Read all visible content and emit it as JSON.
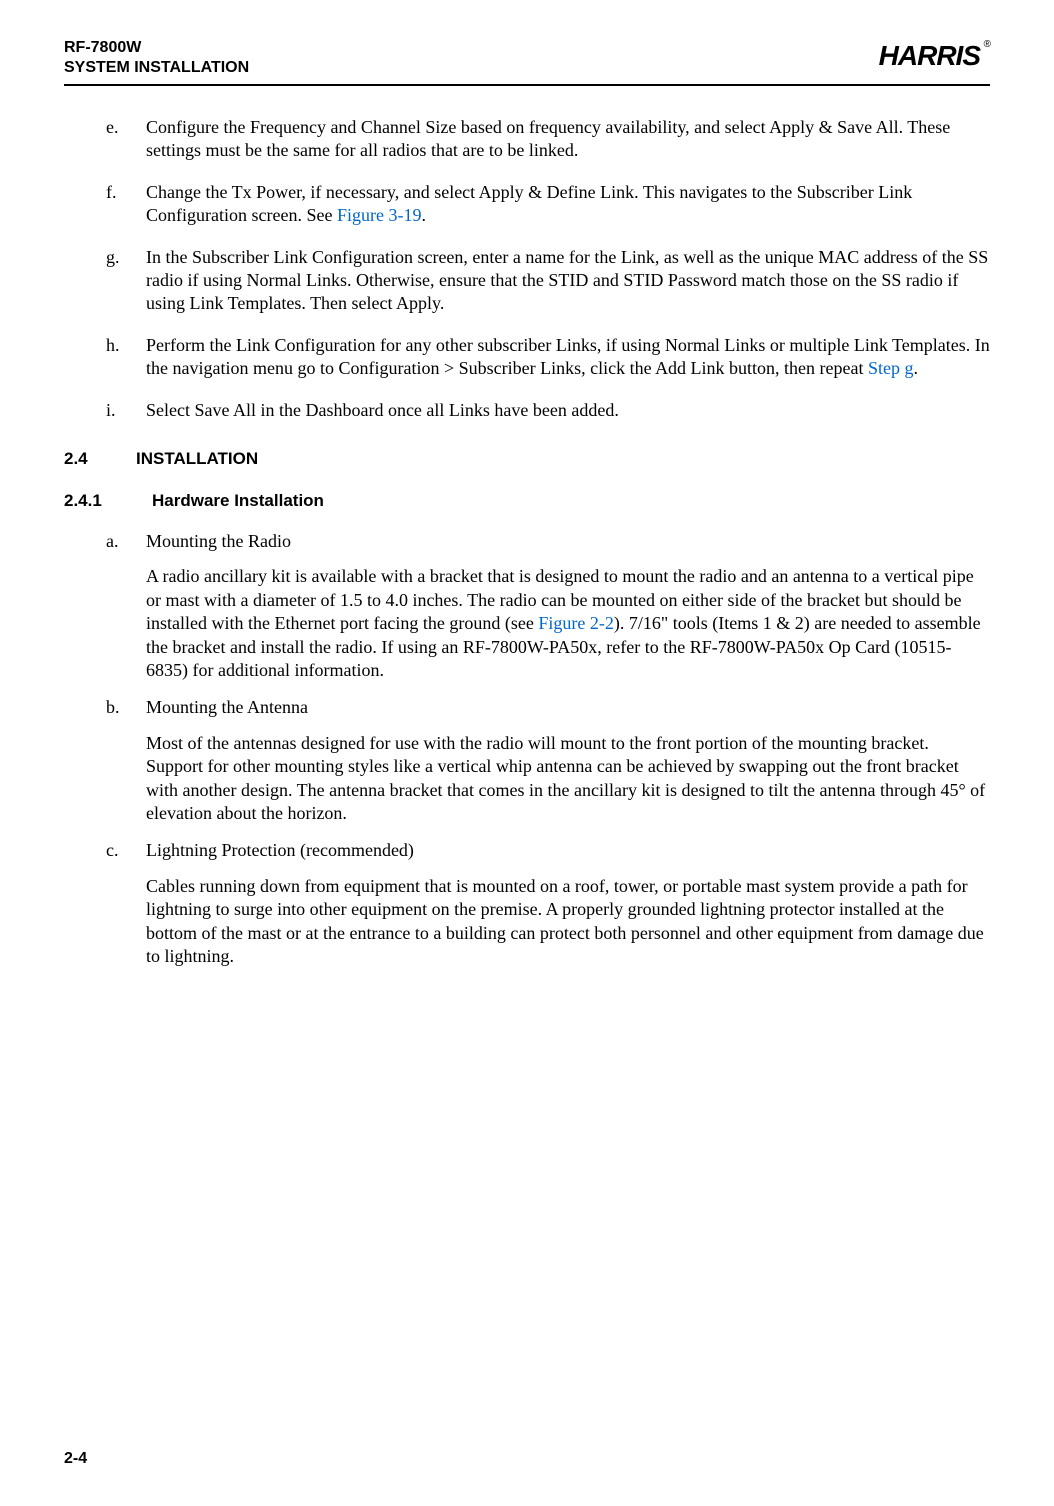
{
  "header": {
    "product": "RF-7800W",
    "subtitle": "SYSTEM INSTALLATION",
    "brand": "HARRIS",
    "reg": "®"
  },
  "steps": {
    "e": {
      "marker": "e.",
      "text": "Configure the Frequency and Channel Size based on frequency availability, and select Apply & Save All. These settings must be the same for all radios that are to be linked."
    },
    "f": {
      "marker": "f.",
      "text_before": "Change the Tx Power, if necessary, and select Apply & Define Link. This navigates to the Subscriber Link Configuration screen. See ",
      "link": "Figure 3-19",
      "text_after": "."
    },
    "g": {
      "marker": "g.",
      "text": "In the Subscriber Link Configuration screen, enter a name for the Link, as well as the unique MAC address of the SS radio if using Normal Links. Otherwise, ensure that the STID and STID Password match those on the SS radio if using Link Templates. Then select Apply."
    },
    "h": {
      "marker": "h.",
      "text_before": "Perform the Link Configuration for any other subscriber Links, if using Normal Links or multiple Link Templates. In the navigation menu go to Configuration > Subscriber Links, click the Add Link button, then repeat ",
      "link": "Step g",
      "text_after": "."
    },
    "i": {
      "marker": "i.",
      "text": "Select Save All in the Dashboard once all Links have been added."
    }
  },
  "section": {
    "num": "2.4",
    "title": "INSTALLATION"
  },
  "subsection": {
    "num": "2.4.1",
    "title": "Hardware Installation"
  },
  "hw": {
    "a": {
      "marker": "a.",
      "title": "Mounting the Radio",
      "para_before": "A radio ancillary kit is available with a bracket that is designed to mount the radio and an antenna to a vertical pipe or mast with a diameter of 1.5 to 4.0 inches. The radio can be mounted on either side of the bracket but should be installed with the Ethernet port facing the ground (see ",
      "link": "Figure 2-2",
      "para_after": "). 7/16\" tools (Items 1 & 2) are needed to assemble the bracket and install the radio. If using an RF-7800W-PA50x, refer to the RF-7800W-PA50x Op Card (10515-6835) for additional information."
    },
    "b": {
      "marker": "b.",
      "title": "Mounting the Antenna",
      "para": "Most of the antennas designed for use with the radio will mount to the front portion of the mounting bracket. Support for other mounting styles like a vertical whip antenna can be achieved by swapping out the front bracket with another design. The antenna bracket that comes in the ancillary kit is designed to tilt the antenna through 45° of elevation about the horizon."
    },
    "c": {
      "marker": "c.",
      "title": "Lightning Protection (recommended)",
      "para": "Cables running down from equipment that is mounted on a roof, tower, or portable mast system provide a path for lightning to surge into other equipment on the premise. A properly grounded lightning protector installed at the bottom of the mast or at the entrance to a building can protect both personnel and other equipment from damage due to lightning."
    }
  },
  "page_number": "2-4"
}
